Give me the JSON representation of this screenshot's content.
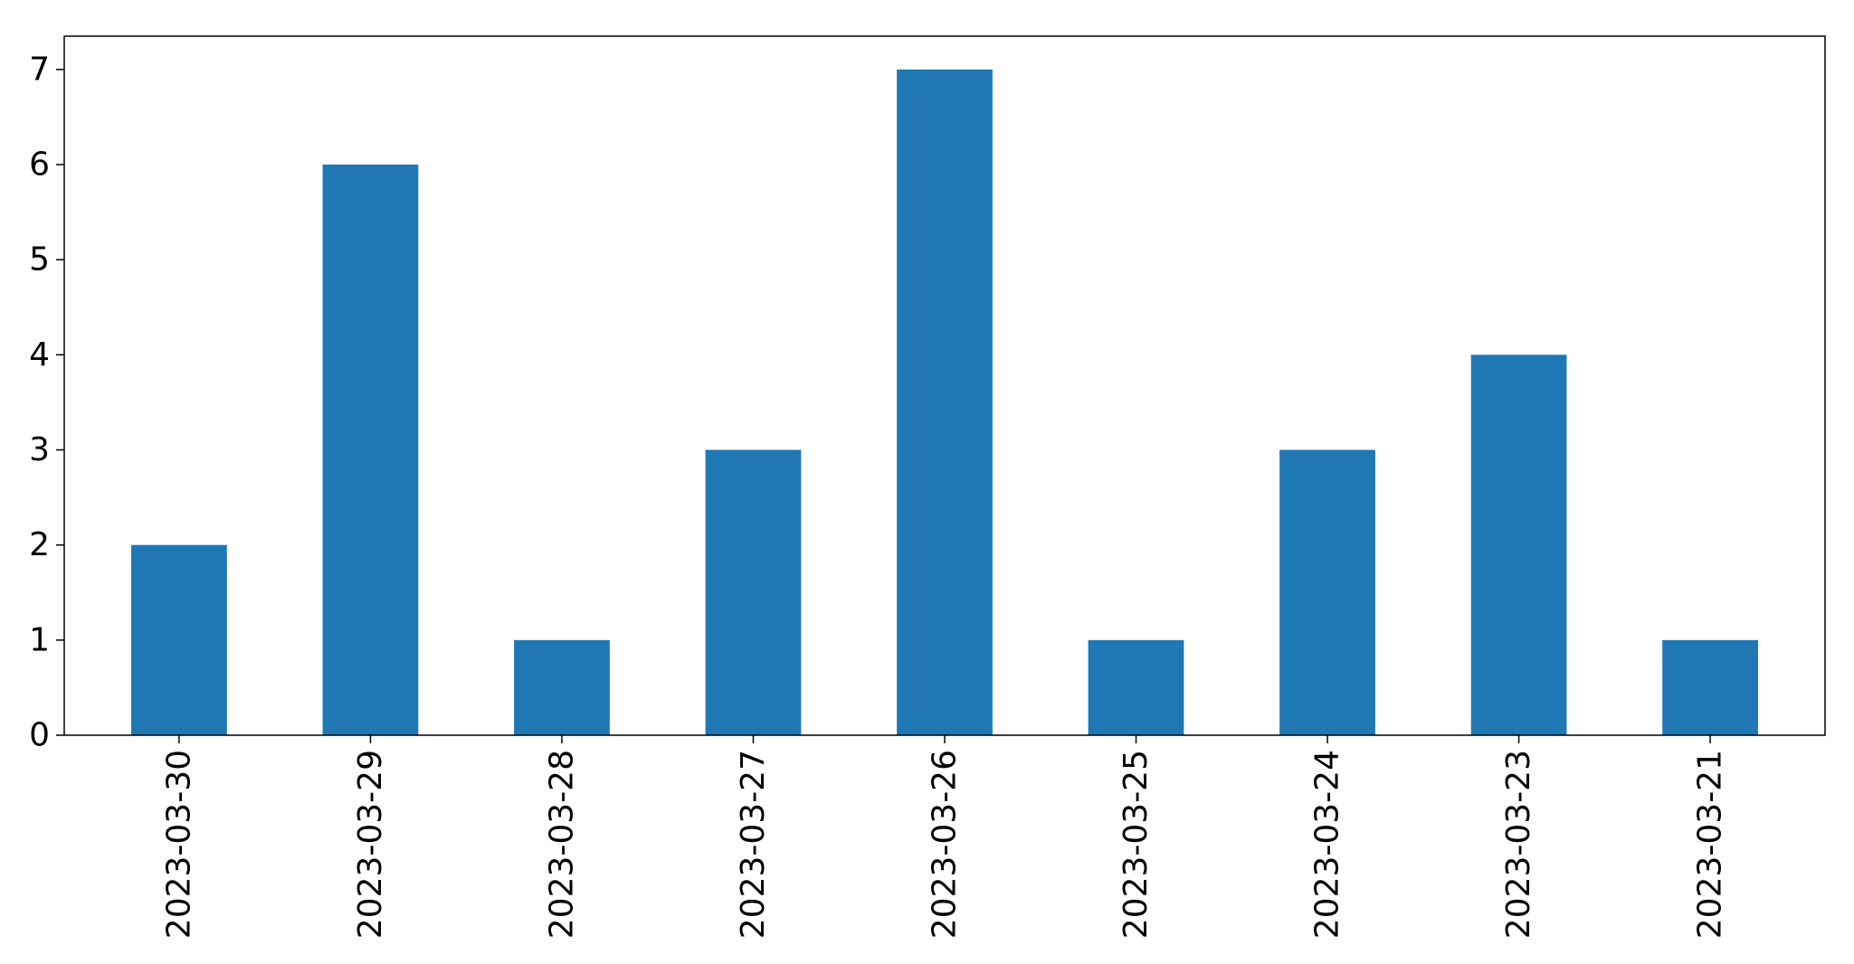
{
  "chart_data": {
    "type": "bar",
    "categories": [
      "2023-03-30",
      "2023-03-29",
      "2023-03-28",
      "2023-03-27",
      "2023-03-26",
      "2023-03-25",
      "2023-03-24",
      "2023-03-23",
      "2023-03-21"
    ],
    "values": [
      2,
      6,
      1,
      3,
      7,
      1,
      3,
      4,
      1
    ],
    "title": "",
    "xlabel": "",
    "ylabel": "",
    "ylim": [
      0,
      7.35
    ],
    "yticks": [
      0,
      1,
      2,
      3,
      4,
      5,
      6,
      7
    ],
    "grid": false,
    "bar_color": "#1f77b4"
  }
}
